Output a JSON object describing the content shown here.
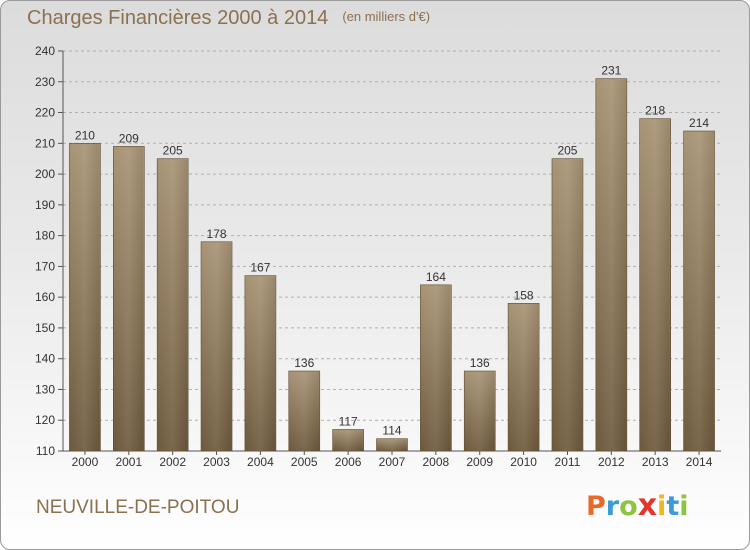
{
  "header": {
    "title": "Charges Financières 2000 à 2014",
    "subtitle": "(en milliers d'€)"
  },
  "footer": {
    "commune": "NEUVILLE-DE-POITOU",
    "logo_letters": [
      {
        "char": "P",
        "color": "#e8692a"
      },
      {
        "char": "r",
        "color": "#3b9bd6"
      },
      {
        "char": "o",
        "color": "#8cc43d"
      },
      {
        "char": "x",
        "color": "#e2352b"
      },
      {
        "char": "i",
        "color": "#f2b61f"
      },
      {
        "char": "t",
        "color": "#3b9bd6"
      },
      {
        "char": "i",
        "color": "#8cc43d"
      }
    ]
  },
  "colors": {
    "bar_top": "#a89476",
    "bar_bottom": "#6e5a3e",
    "text": "#8a7150",
    "grid": "#b0b0b0"
  },
  "chart_data": {
    "type": "bar",
    "title": "Charges Financières 2000 à 2014",
    "subtitle": "(en milliers d'€)",
    "categories": [
      "2000",
      "2001",
      "2002",
      "2003",
      "2004",
      "2005",
      "2006",
      "2007",
      "2008",
      "2009",
      "2010",
      "2011",
      "2012",
      "2013",
      "2014"
    ],
    "values": [
      210,
      209,
      205,
      178,
      167,
      136,
      117,
      114,
      164,
      136,
      158,
      205,
      231,
      218,
      214
    ],
    "ylim": [
      110,
      240
    ],
    "yticks": [
      110,
      120,
      130,
      140,
      150,
      160,
      170,
      180,
      190,
      200,
      210,
      220,
      230,
      240
    ],
    "grid": true,
    "data_labels": true
  }
}
